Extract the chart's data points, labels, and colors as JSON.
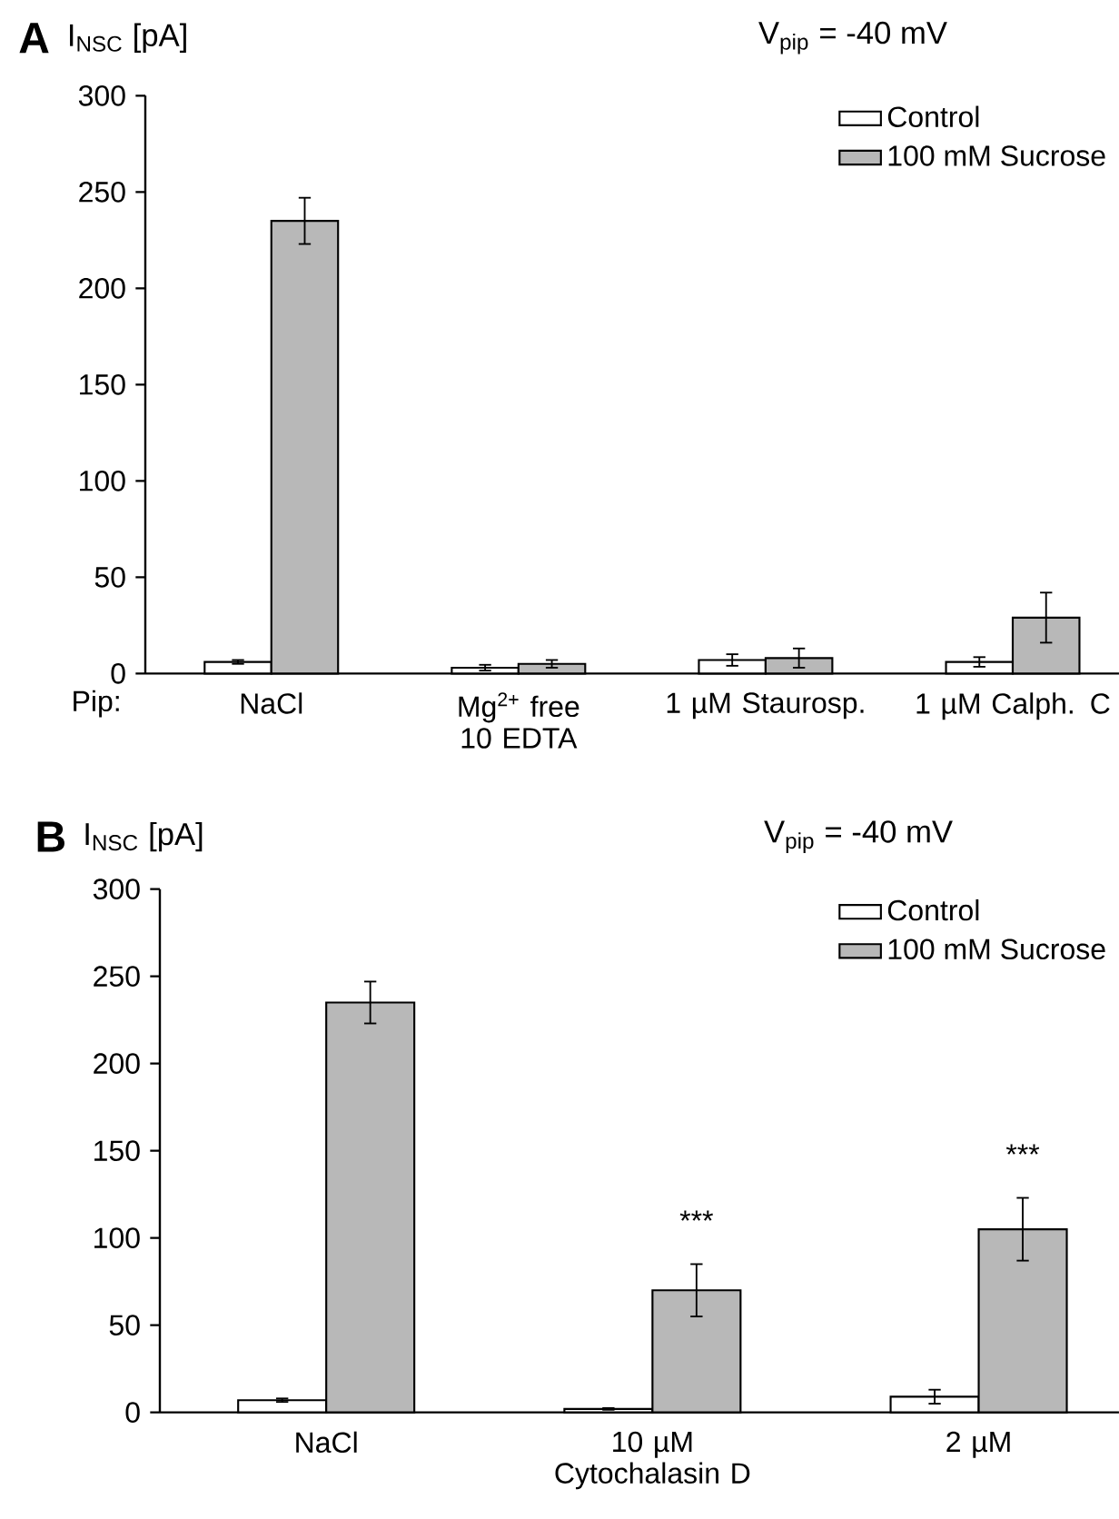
{
  "chart_data": [
    {
      "type": "bar",
      "title": "A",
      "ylabel": "I$_{NSC}$ [pA]",
      "subtitle": "V$_{pip}$ = -40 mV",
      "xlabel": "Pip:",
      "categories": [
        "NaCl",
        "Mg$^{2+}$ free 10 EDTA",
        "1 µM Staurosp.",
        "1 µM Calph. C"
      ],
      "series": [
        {
          "name": "Control",
          "color": "#ffffff",
          "values": [
            6,
            3,
            7,
            6
          ],
          "errors": [
            1,
            1.5,
            3,
            2.5
          ]
        },
        {
          "name": "100 mM Sucrose",
          "color": "#b8b8b8",
          "values": [
            235,
            5,
            8,
            29
          ],
          "errors": [
            12,
            2,
            5,
            13
          ]
        }
      ],
      "ylim": [
        0,
        300
      ],
      "yticks": [
        0,
        50,
        100,
        150,
        200,
        250,
        300
      ],
      "legend": "top right"
    },
    {
      "type": "bar",
      "title": "B",
      "ylabel": "I$_{NSC}$ [pA]",
      "subtitle": "V$_{pip}$ = -40 mV",
      "categories": [
        "NaCl",
        "10 µM Cytochalasin D",
        "2 µM"
      ],
      "series": [
        {
          "name": "Control",
          "color": "#ffffff",
          "values": [
            7,
            2,
            9
          ],
          "errors": [
            1,
            0.5,
            4
          ]
        },
        {
          "name": "100 mM Sucrose",
          "color": "#b8b8b8",
          "values": [
            235,
            70,
            105
          ],
          "errors": [
            12,
            15,
            18
          ]
        }
      ],
      "ylim": [
        0,
        300
      ],
      "yticks": [
        0,
        50,
        100,
        150,
        200,
        250,
        300
      ],
      "legend": "top right",
      "annotations": [
        "***",
        "***"
      ]
    }
  ]
}
